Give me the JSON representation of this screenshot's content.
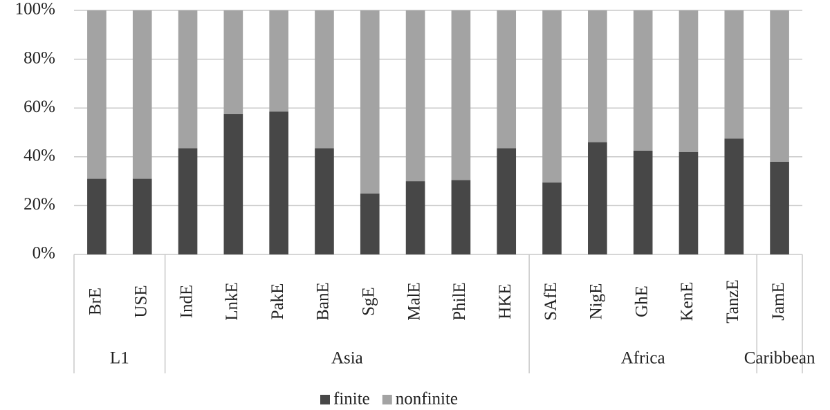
{
  "chart_data": {
    "type": "stacked_bar",
    "categories": [
      "BrE",
      "USE",
      "IndE",
      "LnkE",
      "PakE",
      "BanE",
      "SgE",
      "MalE",
      "PhilE",
      "HKE",
      "SAfE",
      "NigE",
      "GhE",
      "KenE",
      "TanzE",
      "JamE"
    ],
    "groups": [
      {
        "label": "L1",
        "size": 2
      },
      {
        "label": "Asia",
        "size": 8
      },
      {
        "label": "Africa",
        "size": 5
      },
      {
        "label": "Caribbean",
        "size": 1
      }
    ],
    "series": [
      {
        "name": "finite",
        "color": "#474747",
        "values": [
          31,
          31,
          43.5,
          57.5,
          58.5,
          43.5,
          25,
          30,
          30.5,
          43.5,
          29.5,
          46,
          42.5,
          42,
          47.5,
          38
        ]
      },
      {
        "name": "nonfinite",
        "color": "#a3a3a3",
        "values": [
          69,
          69,
          56.5,
          42.5,
          41.5,
          56.5,
          75,
          70,
          69.5,
          56.5,
          70.5,
          54,
          57.5,
          58,
          52.5,
          62
        ]
      }
    ],
    "ylim": [
      0,
      100
    ],
    "yticks": [
      {
        "value": 0,
        "label": "0%"
      },
      {
        "value": 20,
        "label": "20%"
      },
      {
        "value": 40,
        "label": "40%"
      },
      {
        "value": 60,
        "label": "60%"
      },
      {
        "value": 80,
        "label": "80%"
      },
      {
        "value": 100,
        "label": "100%"
      }
    ],
    "grid": true,
    "legend": "bottom"
  }
}
